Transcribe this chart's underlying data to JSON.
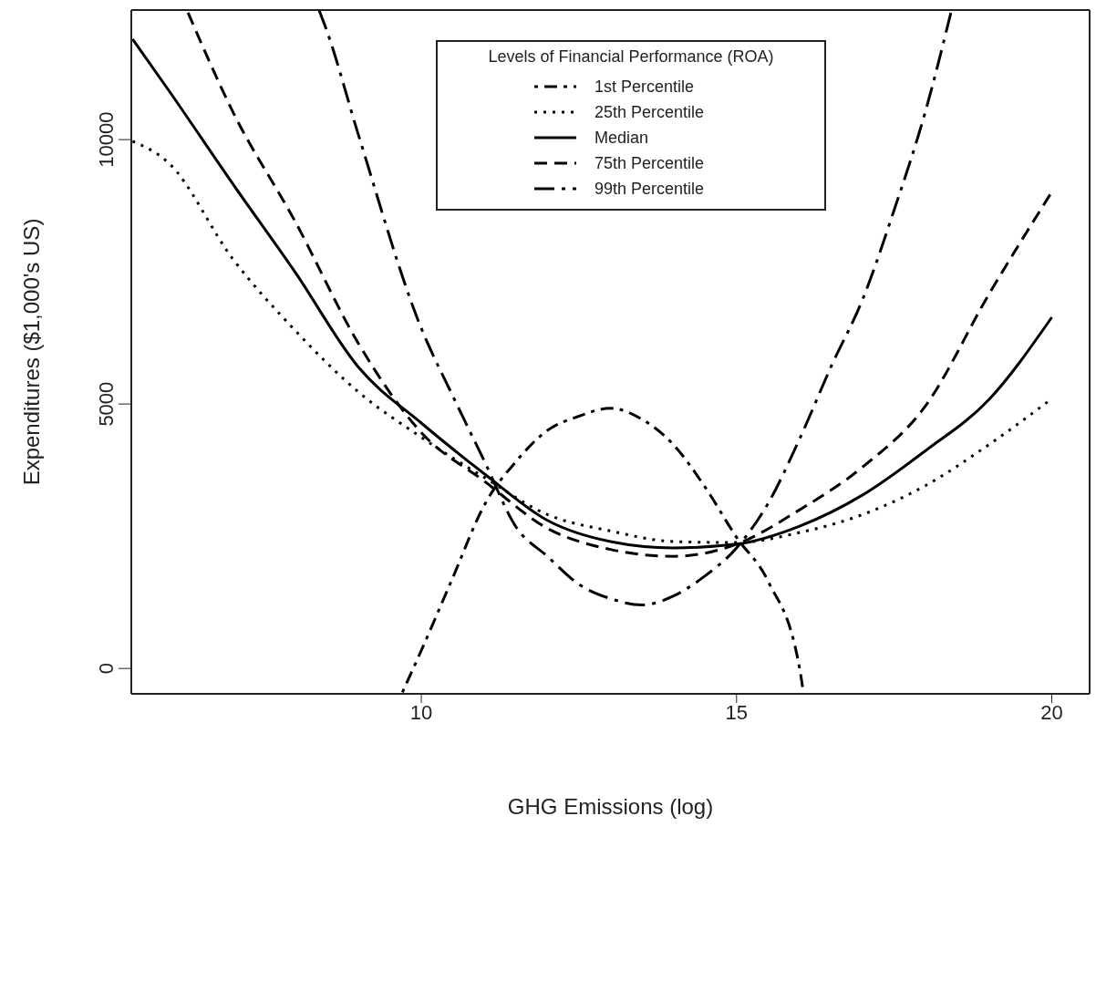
{
  "chart_data": {
    "type": "line",
    "xlabel": "GHG Emissions (log)",
    "ylabel": "Expenditures ($1,000's US)",
    "legend_title": "Levels of Financial Performance (ROA)",
    "legend": "top",
    "marker": "none",
    "xlim": [
      5.4,
      20.6
    ],
    "ylim": [
      -480,
      12450
    ],
    "xticks": [
      10,
      15,
      20
    ],
    "yticks": [
      0,
      5000,
      10000
    ],
    "series": [
      {
        "name": "1st Percentile",
        "color": "#000000",
        "line_style": "dashdot",
        "x": [
          9.7,
          10,
          10.5,
          11,
          11.5,
          12,
          12.5,
          13,
          13.5,
          14,
          14.5,
          15,
          15.5,
          16,
          16.06
        ],
        "values": [
          -450,
          340,
          1720,
          3090,
          3910,
          4500,
          4770,
          4920,
          4710,
          4230,
          3430,
          2480,
          1650,
          0,
          -450
        ]
      },
      {
        "name": "25th Percentile",
        "color": "#000000",
        "line_style": "dotted",
        "x": [
          5.42,
          6,
          7,
          8,
          9,
          10,
          11,
          12,
          13,
          14,
          15,
          16,
          17,
          18,
          19,
          20
        ],
        "values": [
          9970,
          9550,
          7760,
          6390,
          5230,
          4370,
          3610,
          2910,
          2600,
          2400,
          2380,
          2570,
          2910,
          3460,
          4230,
          5100
        ]
      },
      {
        "name": "Median",
        "color": "#000000",
        "line_style": "solid",
        "x": [
          5.42,
          6,
          7,
          8,
          9,
          10,
          11,
          12,
          13,
          14,
          15,
          16,
          17,
          18,
          19,
          20
        ],
        "values": [
          11900,
          10920,
          9180,
          7490,
          5700,
          4640,
          3680,
          2800,
          2400,
          2280,
          2350,
          2690,
          3280,
          4120,
          5080,
          6640
        ]
      },
      {
        "name": "75th Percentile",
        "color": "#000000",
        "line_style": "dashed",
        "x": [
          6.3,
          7,
          8,
          9,
          10,
          11,
          12,
          13,
          14,
          15,
          16,
          17,
          18,
          19,
          20
        ],
        "values": [
          12400,
          10550,
          8450,
          6150,
          4460,
          3540,
          2650,
          2250,
          2120,
          2350,
          3000,
          3810,
          4970,
          7070,
          9010
        ]
      },
      {
        "name": "99th Percentile",
        "color": "#000000",
        "line_style": "longdashdot",
        "x": [
          8.38,
          8.5,
          9,
          10,
          10.5,
          11,
          11.5,
          12,
          12.5,
          13,
          13.5,
          14,
          14.5,
          15,
          15.5,
          16,
          16.5,
          17,
          17.5,
          18,
          18.4
        ],
        "values": [
          12440,
          12060,
          10100,
          6430,
          5150,
          3920,
          2680,
          2120,
          1590,
          1320,
          1200,
          1370,
          1750,
          2280,
          3120,
          4340,
          5710,
          6980,
          8670,
          10550,
          12400
        ]
      }
    ]
  }
}
